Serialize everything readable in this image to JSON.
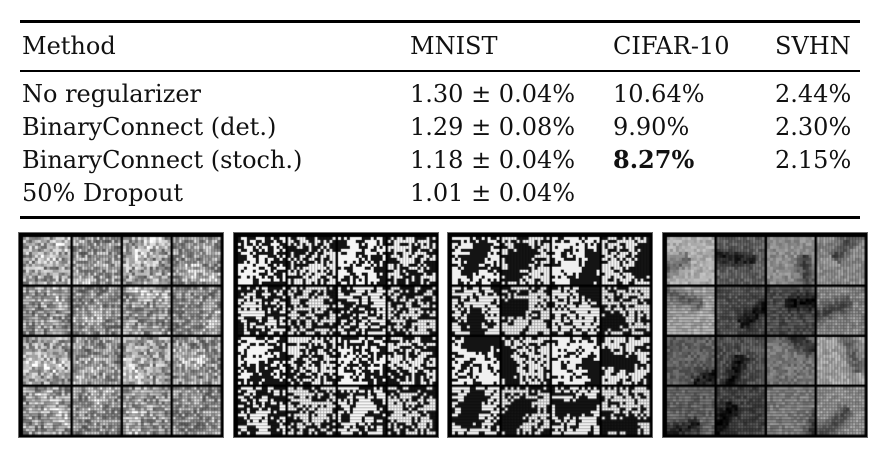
{
  "table": {
    "headers": [
      "Method",
      "MNIST",
      "CIFAR-10",
      "SVHN"
    ],
    "rows": [
      {
        "method": "No regularizer",
        "mnist": "1.30 ± 0.04%",
        "cifar": "10.64%",
        "svhn": "2.44%"
      },
      {
        "method": "BinaryConnect (det.)",
        "mnist": "1.29 ± 0.08%",
        "cifar": "9.90%",
        "svhn": "2.30%"
      },
      {
        "method": "BinaryConnect (stoch.)",
        "mnist": "1.18 ± 0.04%",
        "cifar": "8.27%",
        "svhn": "2.15%"
      },
      {
        "method": "50% Dropout",
        "mnist": "1.01 ± 0.04%",
        "cifar": "",
        "svhn": ""
      }
    ],
    "bold_cell": "rows.2.cifar"
  },
  "figures": [
    {
      "name": "filters-panel-1",
      "grid": 4,
      "style": "noisy-gray"
    },
    {
      "name": "filters-panel-2",
      "grid": 4,
      "style": "binary-speckle"
    },
    {
      "name": "filters-panel-3",
      "grid": 4,
      "style": "binary-strokes"
    },
    {
      "name": "filters-panel-4",
      "grid": 4,
      "style": "smooth-gray"
    }
  ]
}
